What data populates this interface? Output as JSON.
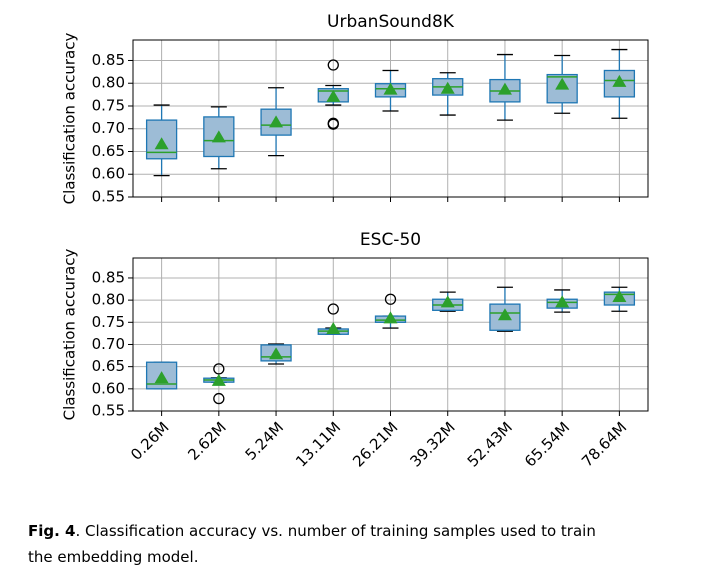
{
  "chart_data": [
    {
      "type": "box",
      "title": "UrbanSound8K",
      "y_label": "Classification accuracy",
      "categories": [
        null,
        null,
        null,
        null,
        null,
        null,
        null,
        null,
        null
      ],
      "ylim": [
        0.55,
        0.895
      ],
      "yticks": [
        0.55,
        {
          "value": 0.6,
          "label": "0.60"
        },
        0.65,
        {
          "value": 0.7,
          "label": "0.70"
        },
        0.75,
        {
          "value": 0.8,
          "label": "0.80"
        },
        0.85
      ],
      "grid": true,
      "box_color": "#1f77b4",
      "box_fill": "#9dbcd6",
      "median_color": "#2ca02c",
      "mean_color": "#2ca02c",
      "boxes": [
        {
          "whislo": 0.597,
          "q1": 0.634,
          "med": 0.648,
          "q3": 0.719,
          "whishi": 0.752,
          "mean": 0.666,
          "fliers": []
        },
        {
          "whislo": 0.612,
          "q1": 0.639,
          "med": 0.674,
          "q3": 0.726,
          "whishi": 0.748,
          "mean": 0.681,
          "fliers": []
        },
        {
          "whislo": 0.641,
          "q1": 0.686,
          "med": 0.708,
          "q3": 0.743,
          "whishi": 0.79,
          "mean": 0.714,
          "fliers": []
        },
        {
          "whislo": 0.752,
          "q1": 0.759,
          "med": 0.783,
          "q3": 0.788,
          "whishi": 0.795,
          "mean": 0.77,
          "fliers": [
            0.84,
            0.712,
            0.71
          ]
        },
        {
          "whislo": 0.739,
          "q1": 0.77,
          "med": 0.788,
          "q3": 0.799,
          "whishi": 0.828,
          "mean": 0.786,
          "fliers": []
        },
        {
          "whislo": 0.73,
          "q1": 0.774,
          "med": 0.792,
          "q3": 0.81,
          "whishi": 0.823,
          "mean": 0.788,
          "fliers": []
        },
        {
          "whislo": 0.719,
          "q1": 0.759,
          "med": 0.783,
          "q3": 0.808,
          "whishi": 0.863,
          "mean": 0.786,
          "fliers": []
        },
        {
          "whislo": 0.734,
          "q1": 0.757,
          "med": 0.814,
          "q3": 0.819,
          "whishi": 0.861,
          "mean": 0.797,
          "fliers": []
        },
        {
          "whislo": 0.723,
          "q1": 0.77,
          "med": 0.806,
          "q3": 0.828,
          "whishi": 0.874,
          "mean": 0.803,
          "fliers": []
        }
      ]
    },
    {
      "type": "box",
      "title": "ESC-50",
      "y_label": "Classification accuracy",
      "categories": [
        "0.26M",
        "2.62M",
        "5.24M",
        "13.11M",
        "26.21M",
        "39.32M",
        "52.43M",
        "65.54M",
        "78.64M"
      ],
      "ylim": [
        0.55,
        0.895
      ],
      "yticks": [
        0.55,
        {
          "value": 0.6,
          "label": "0.60"
        },
        0.65,
        {
          "value": 0.7,
          "label": "0.70"
        },
        0.75,
        {
          "value": 0.8,
          "label": "0.80"
        },
        0.85
      ],
      "grid": true,
      "box_color": "#1f77b4",
      "box_fill": "#9dbcd6",
      "median_color": "#2ca02c",
      "mean_color": "#2ca02c",
      "boxes": [
        {
          "whislo": 0.6,
          "q1": 0.6,
          "med": 0.611,
          "q3": 0.66,
          "whishi": 0.66,
          "mean": 0.624,
          "fliers": []
        },
        {
          "whislo": 0.615,
          "q1": 0.615,
          "med": 0.62,
          "q3": 0.624,
          "whishi": 0.625,
          "mean": 0.618,
          "fliers": [
            0.645,
            0.578
          ]
        },
        {
          "whislo": 0.656,
          "q1": 0.663,
          "med": 0.672,
          "q3": 0.699,
          "whishi": 0.701,
          "mean": 0.678,
          "fliers": []
        },
        {
          "whislo": 0.723,
          "q1": 0.723,
          "med": 0.73,
          "q3": 0.735,
          "whishi": 0.737,
          "mean": 0.735,
          "fliers": [
            0.78
          ]
        },
        {
          "whislo": 0.737,
          "q1": 0.75,
          "med": 0.755,
          "q3": 0.764,
          "whishi": 0.764,
          "mean": 0.759,
          "fliers": [
            0.802
          ]
        },
        {
          "whislo": 0.775,
          "q1": 0.777,
          "med": 0.789,
          "q3": 0.802,
          "whishi": 0.818,
          "mean": 0.795,
          "fliers": []
        },
        {
          "whislo": 0.73,
          "q1": 0.732,
          "med": 0.771,
          "q3": 0.791,
          "whishi": 0.829,
          "mean": 0.766,
          "fliers": []
        },
        {
          "whislo": 0.773,
          "q1": 0.782,
          "med": 0.795,
          "q3": 0.802,
          "whishi": 0.823,
          "mean": 0.795,
          "fliers": []
        },
        {
          "whislo": 0.775,
          "q1": 0.789,
          "med": 0.813,
          "q3": 0.818,
          "whishi": 0.829,
          "mean": 0.807,
          "fliers": []
        }
      ]
    }
  ],
  "caption": {
    "label": "Fig. 4",
    "text": ". Classification accuracy vs. number of training samples used to train the embedding model."
  }
}
